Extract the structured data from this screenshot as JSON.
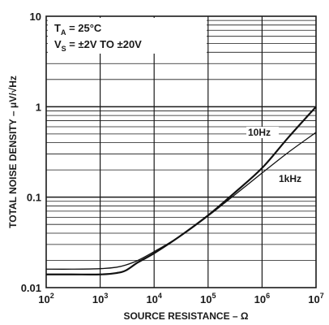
{
  "chart_data": {
    "type": "line",
    "xlabel": "SOURCE RESISTANCE – Ω",
    "ylabel": "TOTAL NOISE DENSITY – μV/√Hz",
    "x_scale": "log",
    "y_scale": "log",
    "xlim": [
      100,
      10000000
    ],
    "ylim": [
      0.01,
      10
    ],
    "grid": true,
    "x_ticks": [
      {
        "base": "10",
        "exp": "2"
      },
      {
        "base": "10",
        "exp": "3"
      },
      {
        "base": "10",
        "exp": "4"
      },
      {
        "base": "10",
        "exp": "5"
      },
      {
        "base": "10",
        "exp": "6"
      },
      {
        "base": "10",
        "exp": "7"
      }
    ],
    "y_ticks": [
      "0.01",
      "0.1",
      "1",
      "10"
    ],
    "annotations": {
      "ta_sym": "T",
      "ta_sub": "A",
      "ta_val": " = 25°C",
      "vs_sym": "V",
      "vs_sub": "S",
      "vs_val": " = ±2V TO ±20V"
    },
    "series": [
      {
        "name": "10Hz",
        "x": [
          100,
          300,
          1000,
          2000,
          3000,
          5000,
          10000,
          30000,
          100000,
          300000,
          1000000,
          3000000,
          10000000
        ],
        "y": [
          0.014,
          0.014,
          0.014,
          0.0145,
          0.0155,
          0.019,
          0.024,
          0.037,
          0.063,
          0.11,
          0.21,
          0.45,
          1.0
        ]
      },
      {
        "name": "1kHz",
        "x": [
          100,
          300,
          1000,
          2000,
          3000,
          5000,
          10000,
          30000,
          100000,
          300000,
          1000000,
          3000000,
          10000000
        ],
        "y": [
          0.016,
          0.016,
          0.0162,
          0.0168,
          0.0178,
          0.02,
          0.025,
          0.037,
          0.062,
          0.104,
          0.185,
          0.31,
          0.52
        ]
      }
    ]
  }
}
